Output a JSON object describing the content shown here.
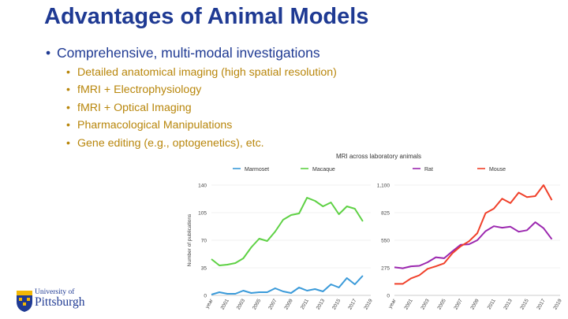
{
  "slide": {
    "title": "Advantages of Animal Models",
    "main_bullet": "Comprehensive, multi-modal investigations",
    "sub_bullets": [
      "Detailed anatomical imaging (high spatial resolution)",
      "fMRI + Electrophysiology",
      "fMRI + Optical Imaging",
      "Pharmacological Manipulations",
      "Gene editing (e.g., optogenetics), etc."
    ],
    "bullet_char": "•"
  },
  "logo": {
    "line1": "University of",
    "line2": "Pittsburgh",
    "colors": {
      "blue": "#1f3a93",
      "gold": "#f2b705"
    }
  },
  "chart_data": [
    {
      "type": "line",
      "title": "MRI across laboratory animals",
      "xlabel": "",
      "ylabel": "Number of publications",
      "first_tick_label": "year",
      "x": [
        1999,
        2000,
        2001,
        2002,
        2003,
        2004,
        2005,
        2006,
        2007,
        2008,
        2009,
        2010,
        2011,
        2012,
        2013,
        2014,
        2015,
        2016,
        2017,
        2018,
        2019
      ],
      "x_tick_labels": [
        "2001",
        "2003",
        "2005",
        "2007",
        "2009",
        "2011",
        "2013",
        "2015",
        "2017",
        "2019"
      ],
      "ylim": [
        0,
        140
      ],
      "y_ticks": [
        "0",
        "35",
        "70",
        "105",
        "140"
      ],
      "legend_position": "top",
      "series": [
        {
          "name": "Marmoset",
          "color": "#3a9ad9",
          "values": [
            1,
            4,
            2,
            2,
            6,
            3,
            4,
            4,
            9,
            5,
            3,
            10,
            6,
            8,
            5,
            14,
            10,
            22,
            14,
            25,
            null
          ]
        },
        {
          "name": "Macaque",
          "color": "#5ed144",
          "values": [
            46,
            38,
            39,
            41,
            47,
            61,
            72,
            69,
            81,
            96,
            102,
            104,
            124,
            120,
            113,
            118,
            103,
            113,
            110,
            94,
            null
          ]
        }
      ]
    },
    {
      "type": "line",
      "title": "",
      "xlabel": "",
      "ylabel": "",
      "first_tick_label": "year",
      "x": [
        1999,
        2000,
        2001,
        2002,
        2003,
        2004,
        2005,
        2006,
        2007,
        2008,
        2009,
        2010,
        2011,
        2012,
        2013,
        2014,
        2015,
        2016,
        2017,
        2018,
        2019
      ],
      "x_tick_labels": [
        "2001",
        "2003",
        "2005",
        "2007",
        "2009",
        "2011",
        "2013",
        "2015",
        "2017",
        "2019"
      ],
      "ylim": [
        0,
        1100
      ],
      "y_ticks": [
        "0",
        "275",
        "550",
        "825",
        "1,100"
      ],
      "legend_position": "top",
      "series": [
        {
          "name": "Rat",
          "color": "#9b27af",
          "values": [
            280,
            270,
            290,
            295,
            330,
            380,
            370,
            440,
            505,
            510,
            550,
            640,
            690,
            675,
            685,
            635,
            650,
            730,
            670,
            560,
            null
          ]
        },
        {
          "name": "Mouse",
          "color": "#f0402a",
          "values": [
            115,
            115,
            170,
            200,
            265,
            290,
            320,
            420,
            490,
            540,
            620,
            820,
            865,
            965,
            920,
            1025,
            980,
            990,
            1100,
            950,
            null
          ]
        }
      ]
    }
  ]
}
